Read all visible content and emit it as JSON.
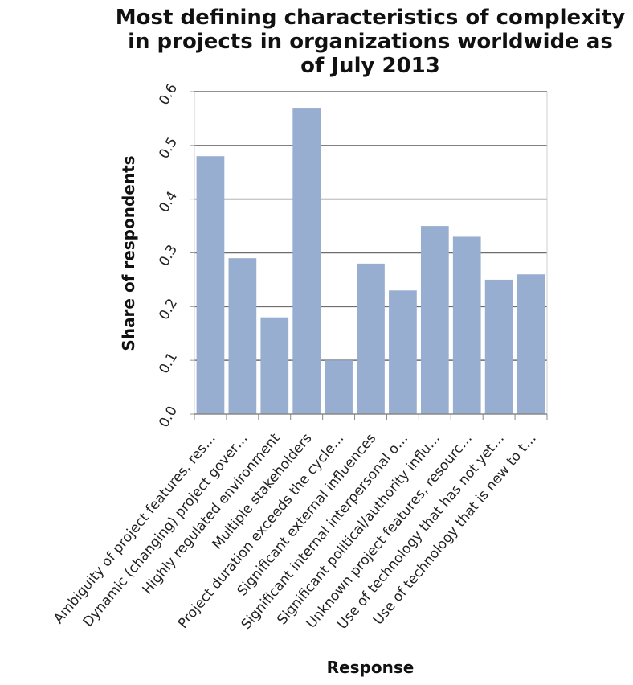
{
  "chart_data": {
    "type": "bar",
    "title": "Most defining characteristics of complexity in projects in organizations worldwide as of July 2013",
    "title_lines": [
      "Most defining characteristics of complexity",
      "in projects in organizations worldwide as",
      "of July 2013"
    ],
    "xlabel": "Response",
    "ylabel": "Share of respondents",
    "ylim": [
      0,
      0.6
    ],
    "yticks": [
      "0.0",
      "0.1",
      "0.2",
      "0.3",
      "0.4",
      "0.5",
      "0.6"
    ],
    "grid": true,
    "bar_color": "#97aed1",
    "categories": [
      "Ambiguity of project features, res…",
      "Dynamic (changing) project gover…",
      "Highly regulated environment",
      "Multiple stakeholders",
      "Project duration exceeds the cycle…",
      "Significant external influences",
      "Significant internal interpersonal o…",
      "Significant political/authority influ…",
      "Unknown project features, resourc…",
      "Use of technology that has not yet…",
      "Use of technology that is new to t…"
    ],
    "values": [
      0.48,
      0.29,
      0.18,
      0.57,
      0.1,
      0.28,
      0.23,
      0.35,
      0.33,
      0.25,
      0.26
    ]
  }
}
